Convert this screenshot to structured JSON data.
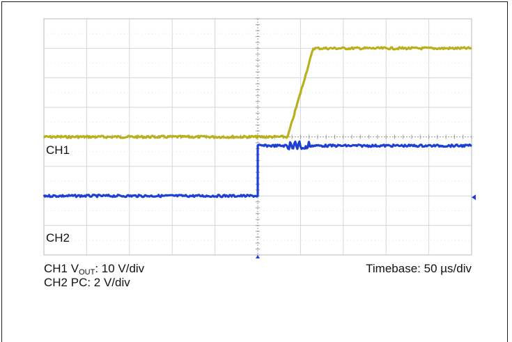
{
  "chart_data": {
    "type": "line",
    "x_unit": "div",
    "xlim": [
      0,
      10
    ],
    "ylim": [
      -4,
      4
    ],
    "grid": true,
    "series": [
      {
        "name": "CH1",
        "color": "#b8b01c",
        "x": [
          0,
          5.0,
          5.7,
          6.0,
          6.3,
          10
        ],
        "values": [
          0.0,
          0.0,
          0.0,
          1.5,
          3.0,
          3.0
        ]
      },
      {
        "name": "CH2",
        "color": "#1e3fd6",
        "x": [
          0,
          5.0,
          5.0,
          10
        ],
        "values": [
          -2.0,
          -2.0,
          -0.3,
          -0.3
        ],
        "disturbance_at_x": [
          5.7,
          6.2
        ]
      }
    ]
  },
  "labels": {
    "ch1": "CH1",
    "ch2": "CH2"
  },
  "captions": {
    "ch1_scale_prefix": "CH1 V",
    "ch1_scale_sub": "OUT",
    "ch1_scale_suffix": ": 10 V/div",
    "ch2_scale": "CH2 PC: 2 V/div",
    "timebase": "Timebase: 50 µs/div"
  }
}
